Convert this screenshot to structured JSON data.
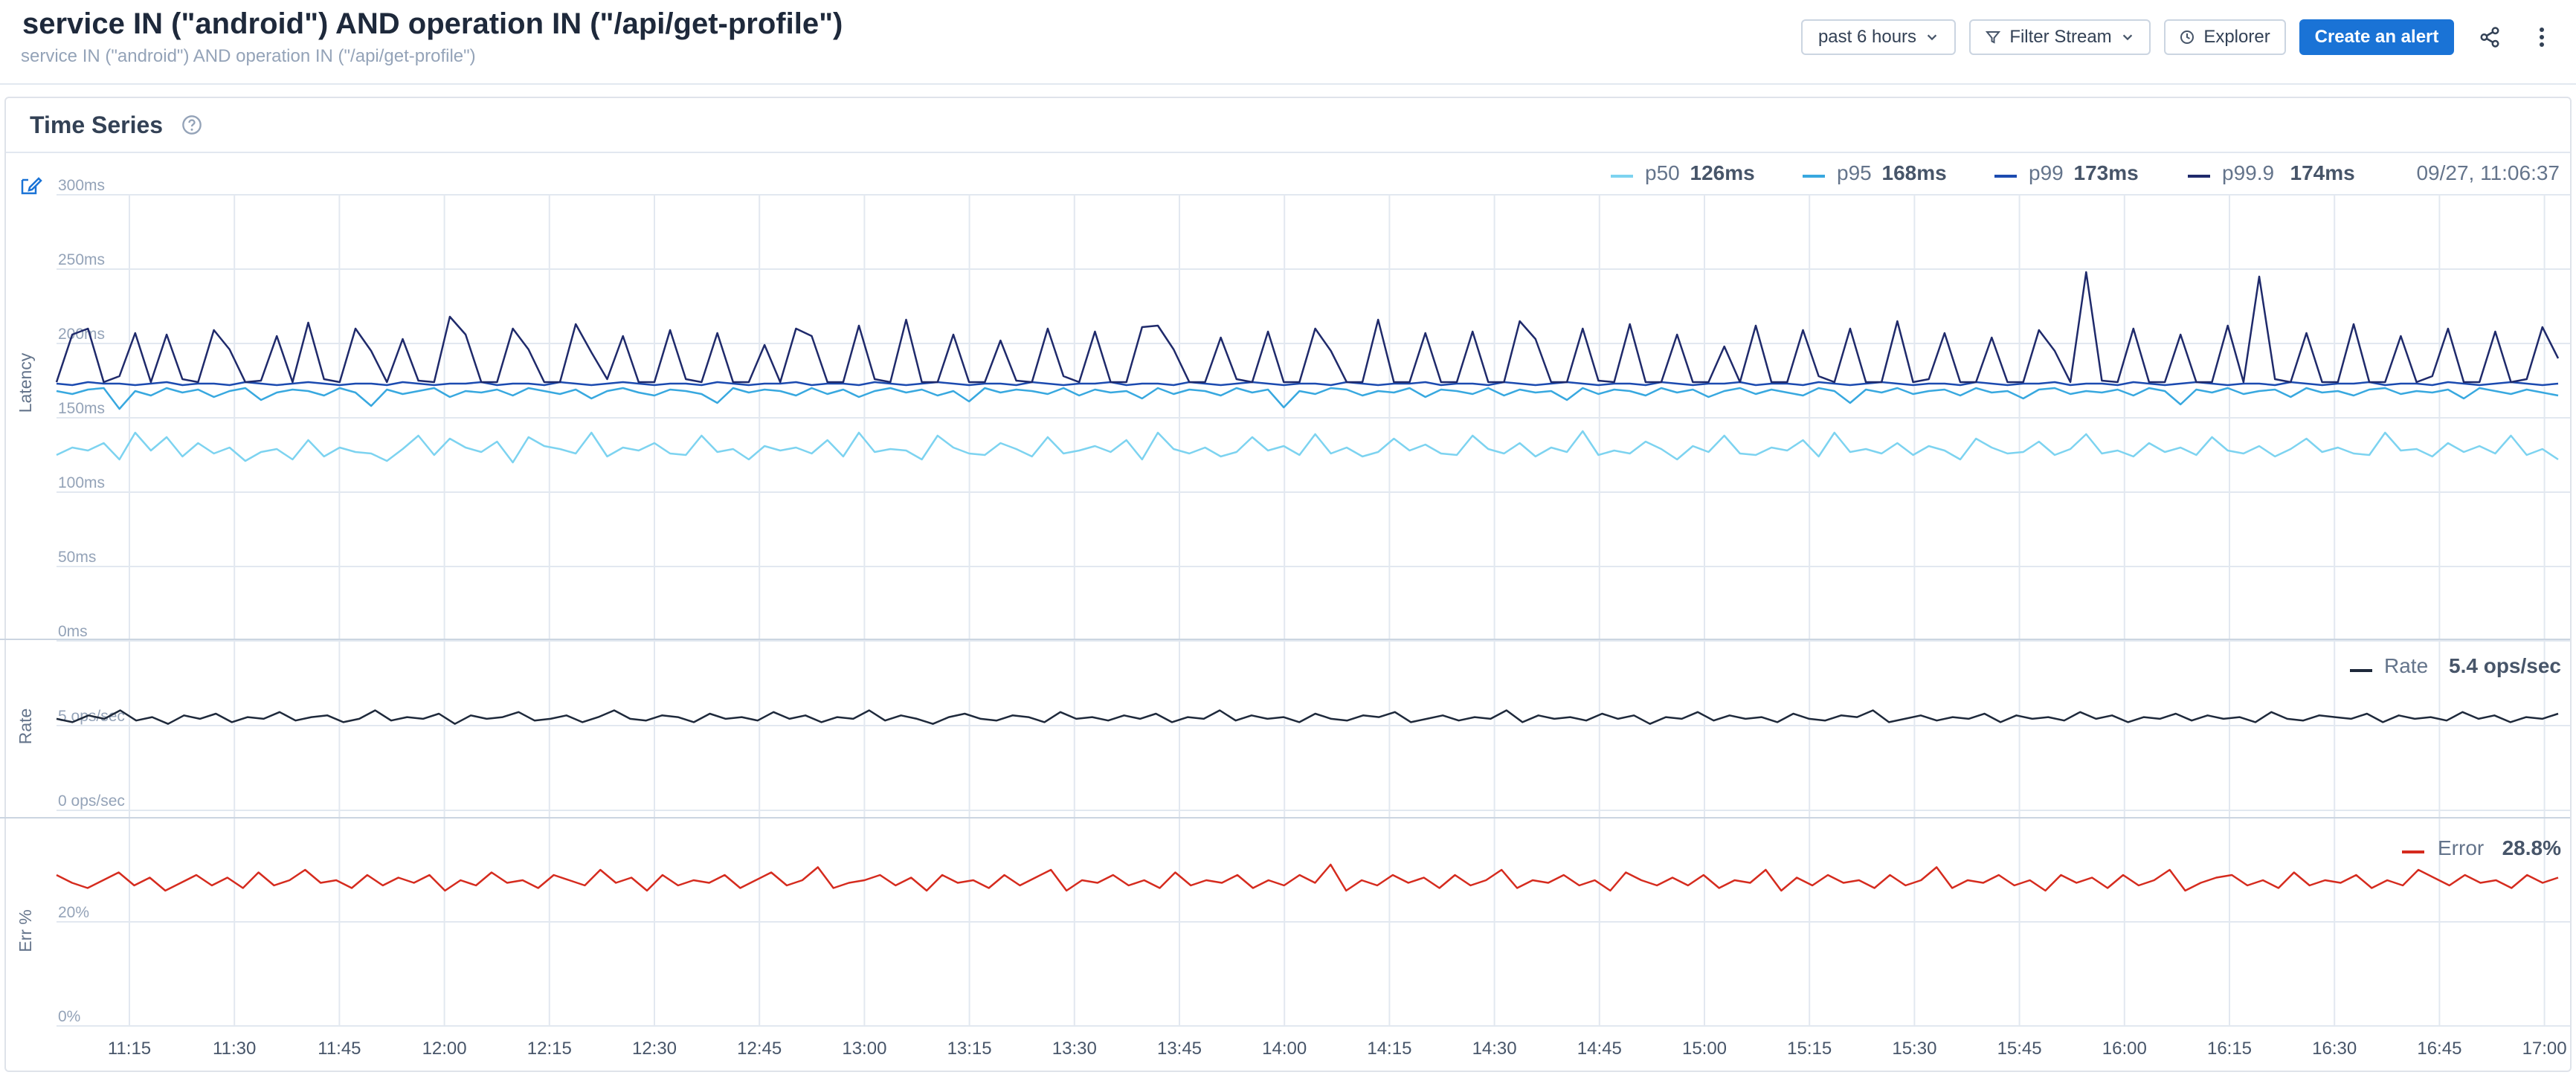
{
  "header": {
    "title": "service IN (\"android\") AND operation IN (\"/api/get-profile\")",
    "subtitle": "service IN (\"android\") AND operation IN (\"/api/get-profile\")",
    "time_range_label": "past 6 hours",
    "filter_stream_label": "Filter Stream",
    "explorer_label": "Explorer",
    "create_alert_label": "Create an alert"
  },
  "panel": {
    "title": "Time Series"
  },
  "colors": {
    "p50": "#7dd3f0",
    "p95": "#38a8df",
    "p99": "#1c4bb0",
    "p999": "#1f2a6b",
    "rate": "#1e293b",
    "error": "#d52b1e",
    "primary": "#1a73d6"
  },
  "icons": [
    "chevron-down-icon",
    "filter-icon",
    "clock-icon",
    "share-icon",
    "more-vertical-icon",
    "help-circle-icon",
    "edit-icon"
  ],
  "chart_data": [
    {
      "type": "line",
      "ylabel": "Latency",
      "y_ticks": [
        "0ms",
        "50ms",
        "100ms",
        "150ms",
        "200ms",
        "250ms",
        "300ms"
      ],
      "ylim": [
        0,
        300
      ],
      "x_ticks": [
        "11:15",
        "11:30",
        "11:45",
        "12:00",
        "12:15",
        "12:30",
        "12:45",
        "13:00",
        "13:15",
        "13:30",
        "13:45",
        "14:00",
        "14:15",
        "14:30",
        "14:45",
        "15:00",
        "15:15",
        "15:30",
        "15:45",
        "16:00",
        "16:15",
        "16:30",
        "16:45",
        "17:00"
      ],
      "legend_timestamp": "09/27, 11:06:37",
      "series": [
        {
          "name": "p50",
          "display": "126ms",
          "values": [
            125,
            130,
            128,
            133,
            122,
            140,
            128,
            137,
            124,
            133,
            126,
            130,
            121,
            127,
            129,
            122,
            135,
            124,
            130,
            127,
            126,
            121,
            129,
            138,
            125,
            136,
            130,
            127,
            134,
            120,
            137,
            131,
            129,
            126,
            140,
            124,
            130,
            128,
            133,
            126,
            125,
            138,
            127,
            129,
            122,
            131,
            128,
            130,
            126,
            135,
            124,
            140,
            127,
            129,
            128,
            122,
            138,
            130,
            126,
            125,
            133,
            129,
            124,
            137,
            126,
            128,
            131,
            127,
            135,
            122,
            140,
            129,
            126,
            130,
            124,
            127,
            137,
            128,
            131,
            125,
            139,
            126,
            130,
            124,
            127,
            136,
            128,
            132,
            126,
            125,
            138,
            129,
            126,
            133,
            124,
            130,
            127,
            141,
            125,
            128,
            126,
            134,
            129,
            122,
            131,
            127,
            138,
            126,
            125,
            130,
            128,
            135,
            124,
            140,
            127,
            129,
            126,
            133,
            125,
            131,
            128,
            122,
            136,
            130,
            126,
            127,
            134,
            125,
            129,
            139,
            126,
            128,
            124,
            133,
            127,
            130,
            125,
            137,
            128,
            126,
            131,
            124,
            129,
            136,
            127,
            130,
            126,
            125,
            140,
            128,
            129,
            124,
            133,
            127,
            131,
            126,
            138,
            125,
            129,
            122
          ]
        },
        {
          "name": "p95",
          "display": "168ms",
          "values": [
            168,
            166,
            169,
            170,
            156,
            168,
            165,
            170,
            167,
            169,
            164,
            168,
            170,
            162,
            167,
            169,
            168,
            165,
            170,
            167,
            158,
            169,
            166,
            168,
            170,
            164,
            168,
            167,
            169,
            165,
            170,
            168,
            166,
            169,
            163,
            168,
            170,
            167,
            165,
            169,
            168,
            166,
            160,
            170,
            167,
            169,
            168,
            165,
            170,
            166,
            169,
            164,
            168,
            170,
            167,
            169,
            165,
            168,
            161,
            170,
            167,
            169,
            168,
            166,
            170,
            165,
            169,
            167,
            168,
            163,
            170,
            166,
            169,
            168,
            165,
            170,
            167,
            169,
            157,
            168,
            166,
            170,
            169,
            165,
            168,
            167,
            170,
            164,
            169,
            168,
            166,
            170,
            165,
            169,
            167,
            168,
            162,
            170,
            166,
            169,
            168,
            165,
            170,
            167,
            169,
            164,
            168,
            170,
            166,
            169,
            167,
            165,
            170,
            168,
            160,
            169,
            167,
            170,
            166,
            168,
            169,
            165,
            170,
            167,
            168,
            163,
            169,
            170,
            166,
            168,
            167,
            169,
            165,
            170,
            168,
            159,
            169,
            167,
            170,
            166,
            168,
            169,
            164,
            170,
            167,
            168,
            165,
            169,
            170,
            166,
            168,
            167,
            169,
            163,
            170,
            168,
            166,
            169,
            167,
            165
          ]
        },
        {
          "name": "p99",
          "display": "173ms",
          "values": [
            173,
            172,
            174,
            173,
            173,
            172,
            173,
            174,
            172,
            173,
            173,
            172,
            174,
            173,
            172,
            173,
            174,
            173,
            172,
            173,
            173,
            172,
            174,
            173,
            172,
            173,
            173,
            174,
            172,
            173,
            173,
            172,
            174,
            173,
            172,
            173,
            174,
            173,
            172,
            173,
            173,
            172,
            174,
            173,
            172,
            173,
            173,
            174,
            172,
            173,
            173,
            172,
            174,
            173,
            172,
            173,
            174,
            173,
            172,
            173,
            173,
            172,
            174,
            173,
            172,
            173,
            173,
            174,
            172,
            173,
            173,
            172,
            174,
            173,
            172,
            173,
            174,
            173,
            172,
            173,
            173,
            172,
            174,
            173,
            172,
            173,
            173,
            174,
            172,
            173,
            173,
            172,
            174,
            173,
            172,
            173,
            174,
            173,
            172,
            173,
            173,
            172,
            174,
            173,
            172,
            173,
            173,
            174,
            172,
            173,
            173,
            172,
            174,
            173,
            172,
            173,
            174,
            173,
            172,
            173,
            173,
            172,
            174,
            173,
            172,
            173,
            173,
            174,
            172,
            173,
            173,
            172,
            174,
            173,
            172,
            173,
            174,
            173,
            172,
            173,
            173,
            172,
            174,
            173,
            172,
            173,
            173,
            174,
            172,
            173,
            173,
            172,
            174,
            173,
            172,
            173,
            174,
            173,
            172,
            173
          ]
        },
        {
          "name": "p99.9",
          "display": "174ms",
          "values": [
            174,
            206,
            210,
            174,
            178,
            207,
            174,
            206,
            176,
            174,
            209,
            196,
            174,
            175,
            205,
            174,
            214,
            176,
            174,
            210,
            195,
            174,
            203,
            175,
            174,
            218,
            206,
            174,
            174,
            210,
            196,
            174,
            174,
            213,
            194,
            176,
            205,
            174,
            174,
            209,
            176,
            174,
            207,
            174,
            174,
            199,
            174,
            210,
            205,
            174,
            174,
            212,
            176,
            174,
            216,
            174,
            174,
            206,
            174,
            174,
            202,
            175,
            174,
            210,
            178,
            174,
            208,
            174,
            174,
            211,
            212,
            196,
            174,
            174,
            204,
            176,
            174,
            208,
            174,
            174,
            210,
            195,
            174,
            174,
            216,
            174,
            174,
            207,
            174,
            174,
            208,
            174,
            174,
            215,
            203,
            174,
            174,
            210,
            175,
            174,
            213,
            174,
            174,
            206,
            174,
            174,
            198,
            174,
            212,
            174,
            174,
            209,
            178,
            174,
            210,
            174,
            174,
            215,
            174,
            176,
            207,
            174,
            174,
            204,
            174,
            174,
            209,
            195,
            174,
            248,
            175,
            174,
            210,
            174,
            174,
            206,
            174,
            174,
            212,
            174,
            245,
            176,
            174,
            207,
            174,
            174,
            213,
            174,
            174,
            205,
            174,
            178,
            210,
            174,
            174,
            208,
            174,
            176,
            211,
            190
          ]
        }
      ]
    },
    {
      "type": "line",
      "ylabel": "Rate",
      "y_ticks": [
        "0 ops/sec",
        "5 ops/sec"
      ],
      "ylim": [
        0,
        10
      ],
      "series": [
        {
          "name": "Rate",
          "display": "5.4 ops/sec",
          "values": [
            5.4,
            5.2,
            5.6,
            5.4,
            5.9,
            5.3,
            5.5,
            5.1,
            5.6,
            5.4,
            5.7,
            5.2,
            5.5,
            5.4,
            5.8,
            5.3,
            5.5,
            5.6,
            5.2,
            5.4,
            5.9,
            5.3,
            5.5,
            5.4,
            5.7,
            5.1,
            5.6,
            5.4,
            5.5,
            5.8,
            5.3,
            5.4,
            5.6,
            5.2,
            5.5,
            5.9,
            5.4,
            5.3,
            5.6,
            5.5,
            5.2,
            5.7,
            5.4,
            5.5,
            5.3,
            5.8,
            5.4,
            5.6,
            5.2,
            5.5,
            5.4,
            5.9,
            5.3,
            5.6,
            5.4,
            5.1,
            5.5,
            5.7,
            5.4,
            5.3,
            5.6,
            5.5,
            5.2,
            5.8,
            5.4,
            5.5,
            5.3,
            5.6,
            5.4,
            5.7,
            5.2,
            5.5,
            5.4,
            5.9,
            5.3,
            5.6,
            5.4,
            5.5,
            5.2,
            5.7,
            5.4,
            5.3,
            5.6,
            5.5,
            5.8,
            5.2,
            5.4,
            5.6,
            5.3,
            5.5,
            5.4,
            5.9,
            5.2,
            5.6,
            5.4,
            5.5,
            5.3,
            5.7,
            5.4,
            5.6,
            5.1,
            5.5,
            5.4,
            5.8,
            5.3,
            5.6,
            5.4,
            5.5,
            5.2,
            5.7,
            5.4,
            5.3,
            5.6,
            5.5,
            5.9,
            5.2,
            5.4,
            5.6,
            5.3,
            5.5,
            5.4,
            5.7,
            5.2,
            5.6,
            5.4,
            5.5,
            5.3,
            5.8,
            5.4,
            5.6,
            5.2,
            5.5,
            5.4,
            5.7,
            5.3,
            5.6,
            5.4,
            5.5,
            5.2,
            5.8,
            5.4,
            5.3,
            5.6,
            5.5,
            5.4,
            5.7,
            5.2,
            5.6,
            5.4,
            5.5,
            5.3,
            5.8,
            5.4,
            5.6,
            5.2,
            5.5,
            5.4,
            5.7
          ]
        }
      ]
    },
    {
      "type": "line",
      "ylabel": "Err %",
      "y_ticks": [
        "0%",
        "20%"
      ],
      "ylim": [
        0,
        40
      ],
      "series": [
        {
          "name": "Error",
          "display": "28.8%",
          "values": [
            29,
            27.5,
            26.5,
            28,
            29.5,
            27,
            28.5,
            26,
            27.5,
            29,
            27,
            28.5,
            26.5,
            29.5,
            27,
            28,
            30,
            27.5,
            28,
            26.5,
            29,
            27,
            28.5,
            27.5,
            29,
            26,
            28,
            27,
            29.5,
            27.5,
            28,
            26.5,
            29,
            28,
            27,
            30,
            27.5,
            28.5,
            26,
            29,
            27,
            28,
            27.5,
            29,
            26.5,
            28,
            29.5,
            27,
            28,
            30.5,
            26.5,
            27.5,
            28,
            29,
            27,
            28.5,
            26,
            29,
            27.5,
            28,
            26.5,
            29,
            27,
            28.5,
            30,
            26,
            28,
            27.5,
            29,
            27,
            28,
            26.5,
            29.5,
            27,
            28,
            27.5,
            29,
            26.5,
            28,
            27,
            29,
            27.5,
            31,
            26,
            28,
            27,
            29,
            27.5,
            28.5,
            26.5,
            29,
            27,
            28,
            30,
            26.5,
            28,
            27.5,
            29,
            27,
            28,
            26,
            29.5,
            28,
            27,
            28.5,
            27,
            29,
            26.5,
            28,
            27.5,
            30,
            26,
            28.5,
            27,
            29,
            27.5,
            28,
            26.5,
            29,
            27,
            28,
            30.5,
            26.5,
            28,
            27.5,
            29,
            27,
            28,
            26,
            29,
            27.5,
            28.5,
            26.5,
            29,
            27,
            28,
            30,
            26,
            27.5,
            28.5,
            29,
            27,
            28,
            26.5,
            29.5,
            27,
            28,
            27.5,
            29,
            26.5,
            28,
            27,
            30,
            28.5,
            27,
            29,
            27.5,
            28,
            26.5,
            29,
            27.5,
            28.5
          ]
        }
      ]
    }
  ]
}
